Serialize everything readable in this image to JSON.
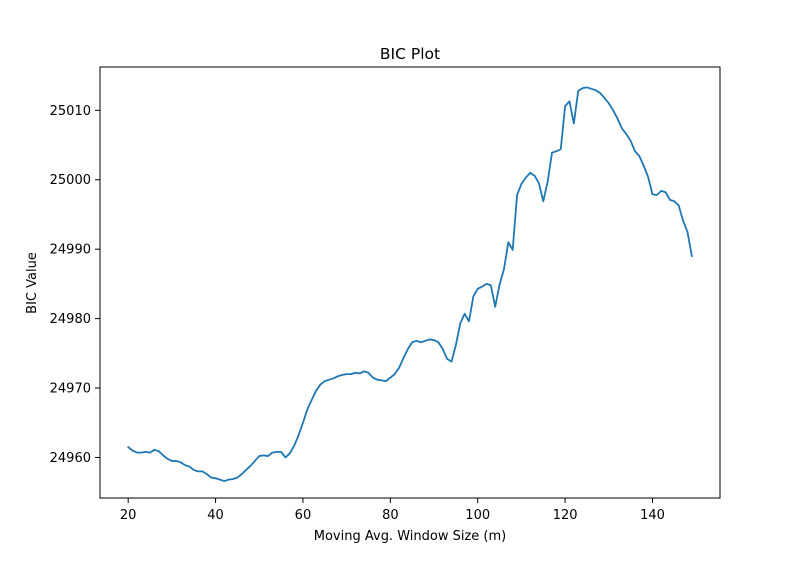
{
  "chart_data": {
    "type": "line",
    "title": "BIC Plot",
    "xlabel": "Moving Avg. Window Size (m)",
    "ylabel": "BIC Value",
    "xlim": [
      13.55,
      155.45
    ],
    "ylim": [
      24954.16,
      25016.24
    ],
    "x_ticks": [
      20,
      40,
      60,
      80,
      100,
      120,
      140
    ],
    "y_ticks": [
      24960,
      24970,
      24980,
      24990,
      25000,
      25010
    ],
    "grid": false,
    "color": "#1f77b4",
    "series": [
      {
        "x": [
          20,
          21,
          22,
          23,
          24,
          25,
          26,
          27,
          28,
          29,
          30,
          31,
          32,
          33,
          34,
          35,
          36,
          37,
          38,
          39,
          40,
          41,
          42,
          43,
          44,
          45,
          46,
          47,
          48,
          49,
          50,
          51,
          52,
          53,
          54,
          55,
          56,
          57,
          58,
          59,
          60,
          61,
          62,
          63,
          64,
          65,
          66,
          67,
          68,
          69,
          70,
          71,
          72,
          73,
          74,
          75,
          76,
          77,
          78,
          79,
          80,
          81,
          82,
          83,
          84,
          85,
          86,
          87,
          88,
          89,
          90,
          91,
          92,
          93,
          94,
          95,
          96,
          97,
          98,
          99,
          100,
          101,
          102,
          103,
          104,
          105,
          106,
          107,
          108,
          109,
          110,
          111,
          112,
          113,
          114,
          115,
          116,
          117,
          118,
          119,
          120,
          121,
          122,
          123,
          124,
          125,
          126,
          127,
          128,
          129,
          130,
          131,
          132,
          133,
          134,
          135,
          136,
          137,
          138,
          139,
          140,
          141,
          142,
          143,
          144,
          145,
          146,
          147,
          148,
          149
        ],
        "y": [
          24961.5,
          24961.0,
          24960.7,
          24960.7,
          24960.8,
          24960.7,
          24961.1,
          24960.9,
          24960.3,
          24959.8,
          24959.5,
          24959.5,
          24959.3,
          24958.9,
          24958.7,
          24958.2,
          24958.0,
          24958.0,
          24957.6,
          24957.1,
          24957.0,
          24956.8,
          24956.6,
          24956.8,
          24956.9,
          24957.1,
          24957.6,
          24958.2,
          24958.8,
          24959.5,
          24960.2,
          24960.3,
          24960.2,
          24960.7,
          24960.8,
          24960.8,
          24960.0,
          24960.6,
          24961.7,
          24963.2,
          24965.0,
          24966.9,
          24968.3,
          24969.6,
          24970.5,
          24971.0,
          24971.2,
          24971.4,
          24971.7,
          24971.9,
          24972.0,
          24972.0,
          24972.2,
          24972.1,
          24972.4,
          24972.2,
          24971.5,
          24971.2,
          24971.1,
          24971.0,
          24971.5,
          24972.0,
          24972.9,
          24974.3,
          24975.6,
          24976.6,
          24976.8,
          24976.6,
          24976.8,
          24977.0,
          24976.9,
          24976.6,
          24975.6,
          24974.2,
          24973.8,
          24976.2,
          24979.3,
          24980.7,
          24979.6,
          24983.2,
          24984.3,
          24984.6,
          24985.0,
          24984.8,
          24981.7,
          24984.9,
          24987.1,
          24991.0,
          24989.9,
          24997.8,
          24999.4,
          25000.3,
          25001.0,
          25000.6,
          24999.5,
          24996.9,
          24999.7,
          25003.9,
          25004.1,
          25004.4,
          25010.6,
          25011.3,
          25008.1,
          25012.8,
          25013.2,
          25013.3,
          25013.1,
          25012.9,
          25012.5,
          25011.8,
          25011.0,
          25010.0,
          25008.8,
          25007.4,
          25006.6,
          25005.6,
          25004.1,
          25003.4,
          25002.0,
          25000.4,
          24997.9,
          24997.8,
          24998.4,
          24998.2,
          24997.1,
          24996.9,
          24996.3,
          24994.1,
          24992.5,
          24989.0
        ]
      }
    ]
  }
}
